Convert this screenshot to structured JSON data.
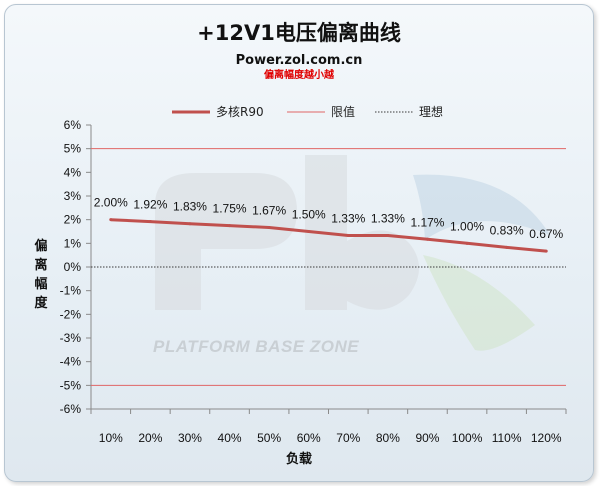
{
  "header": {
    "title": "+12V1电压偏离曲线",
    "site": "Power.zol.com.cn",
    "note": "偏离幅度越小越"
  },
  "watermark": {
    "text": "PLATFORM BASE ZONE"
  },
  "colors": {
    "series": "#c0504d",
    "limit": "#e06666",
    "ideal": "#3a3a3a",
    "note": "#e00000"
  },
  "chart_data": {
    "type": "line",
    "x": [
      "10%",
      "20%",
      "30%",
      "40%",
      "50%",
      "60%",
      "70%",
      "80%",
      "90%",
      "100%",
      "110%",
      "120%"
    ],
    "xlabel": "负载",
    "ylabel": "偏离幅度",
    "ylim": [
      -6,
      6
    ],
    "yticks": [
      6,
      5,
      4,
      3,
      2,
      1,
      0,
      -1,
      -2,
      -3,
      -4,
      -5,
      -6
    ],
    "ytick_labels": [
      "6%",
      "5%",
      "4%",
      "3%",
      "2%",
      "1%",
      "0%",
      "-1%",
      "-2%",
      "-3%",
      "-4%",
      "-5%",
      "-6%"
    ],
    "grid": false,
    "legend": "top",
    "series": [
      {
        "name": "多核R90",
        "values": [
          2.0,
          1.92,
          1.83,
          1.75,
          1.67,
          1.5,
          1.33,
          1.33,
          1.17,
          1.0,
          0.83,
          0.67
        ],
        "labels": [
          "2.00%",
          "1.92%",
          "1.83%",
          "1.75%",
          "1.67%",
          "1.50%",
          "1.33%",
          "1.33%",
          "1.17%",
          "1.00%",
          "0.83%",
          "0.67%"
        ]
      }
    ],
    "reference_lines": [
      {
        "name": "限值",
        "values": [
          5,
          -5
        ]
      },
      {
        "name": "理想",
        "values": [
          0
        ]
      }
    ]
  }
}
